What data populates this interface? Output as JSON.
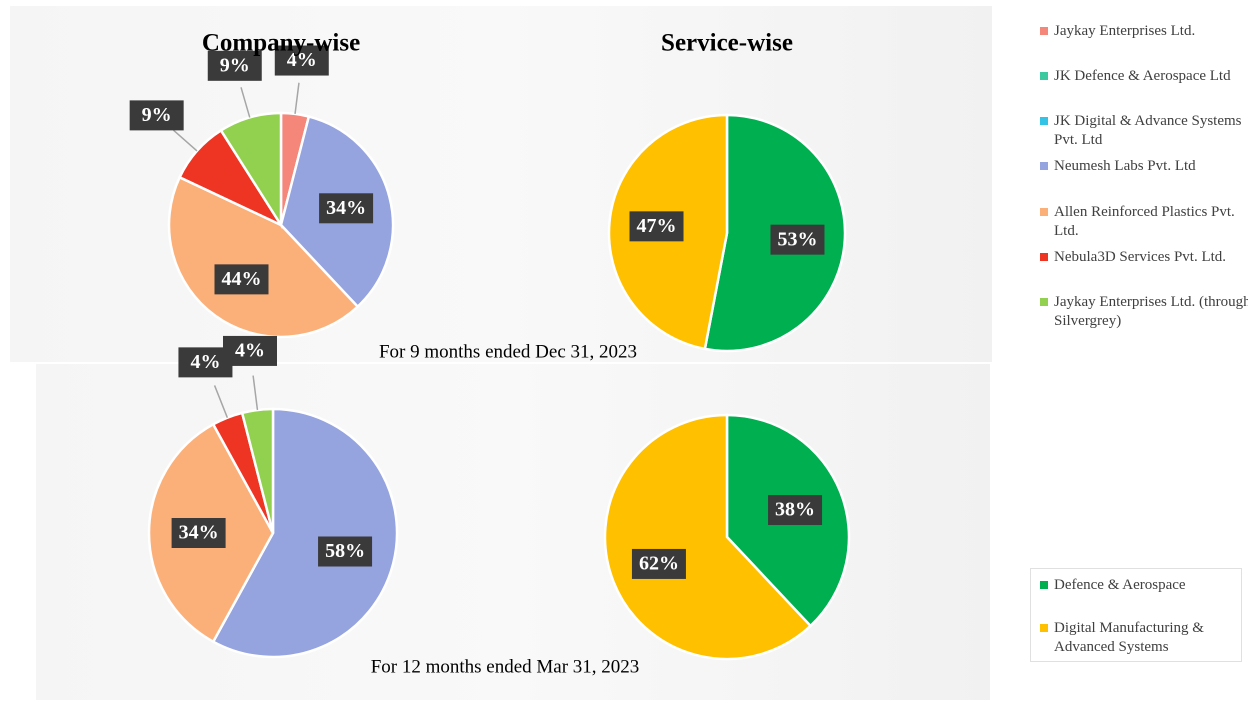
{
  "chart_data": [
    {
      "type": "pie",
      "title": "Company-wise",
      "categories": [
        "Jaykay Enterprises Ltd.",
        "JK Defence & Aerospace Ltd",
        "JK Digital & Advance Systems Pvt. Ltd",
        "Neumesh Labs Pvt. Ltd",
        "Allen Reinforced Plastics Pvt. Ltd.",
        "Nebula3D Services Pvt. Ltd.",
        "Jaykay Enterprises Ltd. (through Silvergrey)"
      ],
      "colors": [
        "#f4877a",
        "#3cc9a0",
        "#33c3e6",
        "#95a3de",
        "#fbb07a",
        "#ee3524",
        "#92d050"
      ],
      "values": [
        4,
        0,
        0,
        34,
        44,
        9,
        9
      ],
      "value_labels": [
        "4%",
        null,
        null,
        "34%",
        "44%",
        "9%",
        "9%"
      ]
    },
    {
      "type": "pie",
      "title": "Service-wise",
      "categories": [
        "Defence & Aerospace",
        "Digital Manufacturing & Advanced Systems"
      ],
      "colors": [
        "#00b050",
        "#ffc000"
      ],
      "values": [
        53,
        47
      ],
      "value_labels": [
        "53%",
        "47%"
      ]
    },
    {
      "type": "pie",
      "values": [
        0,
        0,
        0,
        58,
        34,
        4,
        4
      ],
      "value_labels": [
        null,
        null,
        null,
        "58%",
        "34%",
        "4%",
        "4%"
      ]
    },
    {
      "type": "pie",
      "values": [
        38,
        62
      ],
      "value_labels": [
        "38%",
        "62%"
      ]
    }
  ],
  "captions": [
    "For 9 months ended Dec 31, 2023",
    "For 12 months ended Mar 31, 2023"
  ]
}
